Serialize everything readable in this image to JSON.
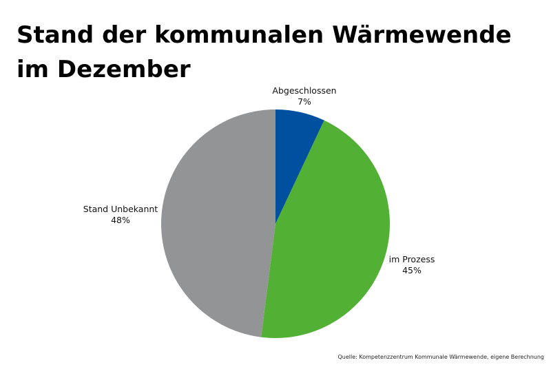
{
  "chart_data": {
    "type": "pie",
    "title": "Stand der kommunalen Wärmewende im Dezember",
    "slices": [
      {
        "label": "Abgeschlossen",
        "value": 7,
        "display": "7%",
        "color": "#0050a0"
      },
      {
        "label": "im Prozess",
        "value": 45,
        "display": "45%",
        "color": "#52b035"
      },
      {
        "label": "Stand Unbekannt",
        "value": 48,
        "display": "48%",
        "color": "#939496"
      }
    ],
    "start_angle": "12 o'clock",
    "direction": "clockwise"
  },
  "source": "Quelle: Kompetenzzentrum Kommunale Wärmewende, eigene Berechnung"
}
